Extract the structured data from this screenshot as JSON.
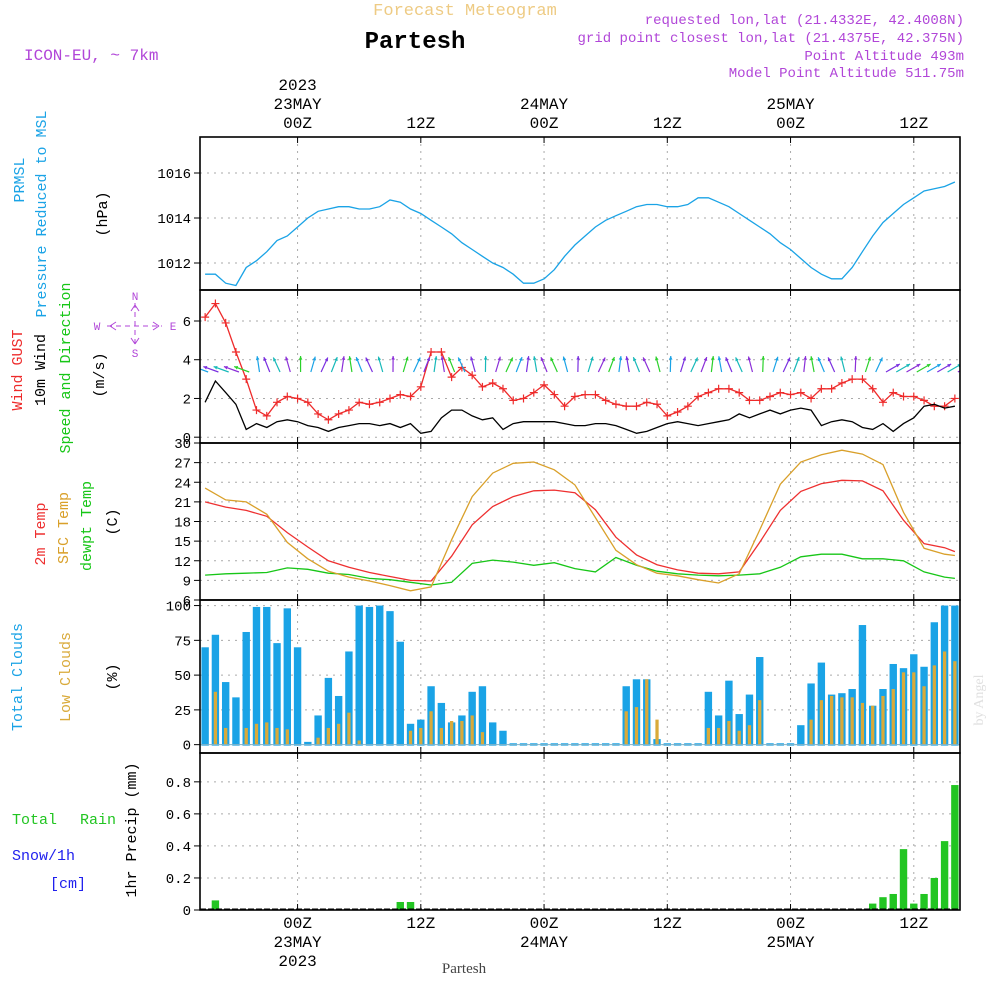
{
  "header": {
    "title_top": "Forecast Meteogram",
    "location": "Partesh",
    "model": "ICON-EU, ~ 7km",
    "requested": "requested lon,lat (21.4332E, 42.4008N)",
    "gridpoint": "grid point closest lon,lat (21.4375E, 42.375N)",
    "altitude": "Point Altitude 493m",
    "model_altitude": "Model Point Altitude 511.75m",
    "footer_name": "Partesh",
    "watermark": "by Angel"
  },
  "colors": {
    "pressure": "#1aa3e6",
    "gust": "#ee2b2b",
    "wind": "#000000",
    "temp2m": "#ee3030",
    "sfc": "#d9a02a",
    "dewpt": "#17c617",
    "total_clouds": "#1aa3e6",
    "low_clouds": "#d9aa3a",
    "rain": "#22c522",
    "snow": "#2020ee",
    "purple": "#b146d8",
    "title_orange": "#eecb84"
  },
  "time_axis": {
    "top_labels": [
      {
        "lines": [
          "2023",
          "23MAY",
          "00Z"
        ],
        "hour": 0
      },
      {
        "lines": [
          "12Z"
        ],
        "hour": 12
      },
      {
        "lines": [
          "24MAY",
          "00Z"
        ],
        "hour": 24
      },
      {
        "lines": [
          "12Z"
        ],
        "hour": 36
      },
      {
        "lines": [
          "25MAY",
          "00Z"
        ],
        "hour": 48
      },
      {
        "lines": [
          "12Z"
        ],
        "hour": 60
      }
    ],
    "bottom_labels": [
      {
        "lines": [
          "00Z",
          "23MAY",
          "2023"
        ],
        "hour": 0
      },
      {
        "lines": [
          "12Z"
        ],
        "hour": 12
      },
      {
        "lines": [
          "00Z",
          "24MAY"
        ],
        "hour": 24
      },
      {
        "lines": [
          "12Z"
        ],
        "hour": 36
      },
      {
        "lines": [
          "00Z",
          "25MAY"
        ],
        "hour": 48
      },
      {
        "lines": [
          "12Z"
        ],
        "hour": 60
      }
    ]
  },
  "panels": {
    "pressure": {
      "label1": "PRMSL",
      "label2": "Pressure Reduced to MSL",
      "unit": "(hPa)"
    },
    "wind": {
      "label_gust": "Wind GUST",
      "label_wind": "10m Wind",
      "label_dir": "Speed and Direction",
      "unit": "(m/s)",
      "compass_n": "N",
      "compass_s": "S",
      "compass_w": "W",
      "compass_e": "E"
    },
    "temp": {
      "label_2m": "2m Temp",
      "label_sfc": "SFC Temp",
      "label_dew": "dewpt Temp",
      "unit": "(C)"
    },
    "clouds": {
      "label_total": "Total Clouds",
      "label_low": "Low Clouds",
      "unit": "(%)"
    },
    "precip": {
      "label_total": "Total",
      "label_rain": "Rain",
      "label_snow": "Snow/1h",
      "label_cm": "[cm]",
      "unit": "1hr Precip (mm)"
    }
  },
  "chart_data": [
    {
      "type": "line",
      "title": "PRMSL Pressure Reduced to MSL",
      "ylabel": "(hPa)",
      "ylim": [
        1010.8,
        1017.6
      ],
      "yticks": [
        1012,
        1014,
        1016
      ],
      "x_start_hour": -9.5,
      "x_end_hour": 64.5,
      "x": [
        -9,
        -8,
        -7,
        -6,
        -5,
        -4,
        -3,
        -2,
        -1,
        0,
        1,
        2,
        3,
        4,
        5,
        6,
        7,
        8,
        9,
        10,
        11,
        12,
        13,
        14,
        15,
        16,
        17,
        18,
        19,
        20,
        21,
        22,
        23,
        24,
        25,
        26,
        27,
        28,
        29,
        30,
        31,
        32,
        33,
        34,
        35,
        36,
        37,
        38,
        39,
        40,
        41,
        42,
        43,
        44,
        45,
        46,
        47,
        48,
        49,
        50,
        51,
        52,
        53,
        54,
        55,
        56,
        57,
        58,
        59,
        60,
        61,
        62,
        63,
        64
      ],
      "series": [
        {
          "name": "PRMSL",
          "values": [
            1011.5,
            1011.5,
            1011.1,
            1011.0,
            1011.8,
            1012.1,
            1012.5,
            1013.0,
            1013.2,
            1013.6,
            1014.0,
            1014.3,
            1014.4,
            1014.5,
            1014.5,
            1014.4,
            1014.4,
            1014.5,
            1014.8,
            1014.7,
            1014.4,
            1014.2,
            1013.9,
            1013.6,
            1013.3,
            1012.9,
            1012.6,
            1012.3,
            1012.0,
            1011.8,
            1011.5,
            1011.1,
            1011.1,
            1011.3,
            1011.7,
            1012.3,
            1012.8,
            1013.2,
            1013.6,
            1013.9,
            1014.1,
            1014.3,
            1014.5,
            1014.6,
            1014.6,
            1014.5,
            1014.5,
            1014.6,
            1014.9,
            1014.9,
            1014.7,
            1014.5,
            1014.2,
            1013.9,
            1013.6,
            1013.3,
            1012.9,
            1012.6,
            1012.2,
            1011.8,
            1011.5,
            1011.3,
            1011.3,
            1011.8,
            1012.5,
            1013.2,
            1013.8,
            1014.2,
            1014.6,
            1014.9,
            1015.2,
            1015.3,
            1015.4,
            1015.6
          ]
        }
      ]
    },
    {
      "type": "line",
      "title": "Wind GUST / 10m Wind Speed and Direction",
      "ylabel": "(m/s)",
      "ylim": [
        -0.3,
        7.6
      ],
      "yticks": [
        0,
        2,
        4,
        6
      ],
      "x": [
        -9,
        -8,
        -7,
        -6,
        -5,
        -4,
        -3,
        -2,
        -1,
        0,
        1,
        2,
        3,
        4,
        5,
        6,
        7,
        8,
        9,
        10,
        11,
        12,
        13,
        14,
        15,
        16,
        17,
        18,
        19,
        20,
        21,
        22,
        23,
        24,
        25,
        26,
        27,
        28,
        29,
        30,
        31,
        32,
        33,
        34,
        35,
        36,
        37,
        38,
        39,
        40,
        41,
        42,
        43,
        44,
        45,
        46,
        47,
        48,
        49,
        50,
        51,
        52,
        53,
        54,
        55,
        56,
        57,
        58,
        59,
        60,
        61,
        62,
        63,
        64
      ],
      "series": [
        {
          "name": "Wind GUST",
          "values": [
            6.2,
            6.9,
            5.9,
            4.4,
            3.0,
            1.4,
            1.1,
            1.8,
            2.1,
            2.0,
            1.8,
            1.2,
            0.9,
            1.2,
            1.4,
            1.8,
            1.7,
            1.8,
            2.0,
            2.2,
            2.1,
            2.6,
            4.4,
            4.4,
            3.1,
            3.6,
            3.2,
            2.6,
            2.8,
            2.5,
            1.9,
            2.0,
            2.3,
            2.7,
            2.2,
            1.6,
            2.1,
            2.2,
            2.2,
            1.9,
            1.7,
            1.6,
            1.6,
            1.8,
            1.7,
            1.1,
            1.3,
            1.6,
            2.1,
            2.3,
            2.5,
            2.5,
            2.3,
            1.9,
            1.9,
            2.1,
            2.3,
            2.2,
            2.3,
            2.0,
            2.5,
            2.5,
            2.8,
            3.0,
            3.0,
            2.5,
            1.8,
            2.3,
            2.1,
            2.1,
            1.9,
            1.6,
            1.6,
            2.0
          ]
        },
        {
          "name": "10m Wind",
          "values": [
            1.8,
            2.9,
            2.3,
            1.7,
            0.4,
            0.7,
            0.5,
            0.8,
            0.9,
            0.8,
            0.6,
            0.5,
            0.3,
            0.5,
            0.6,
            0.7,
            0.7,
            0.6,
            0.7,
            0.5,
            0.7,
            0.2,
            0.3,
            1.0,
            1.4,
            1.4,
            1.1,
            0.9,
            1.0,
            0.4,
            0.7,
            0.8,
            0.8,
            0.8,
            0.8,
            0.7,
            0.6,
            0.6,
            0.7,
            0.7,
            0.6,
            0.4,
            0.2,
            0.3,
            0.5,
            0.7,
            0.8,
            0.7,
            0.6,
            0.7,
            0.8,
            0.9,
            1.2,
            1.0,
            1.2,
            1.4,
            1.2,
            1.4,
            1.5,
            1.4,
            0.6,
            0.8,
            0.9,
            0.8,
            0.5,
            0.4,
            0.7,
            0.3,
            0.7,
            1.0,
            1.6,
            1.7,
            1.5,
            1.6
          ]
        }
      ]
    },
    {
      "type": "line",
      "title": "2m Temp / SFC Temp / dewpt Temp",
      "ylabel": "(C)",
      "ylim": [
        6,
        30
      ],
      "yticks": [
        6,
        9,
        12,
        15,
        18,
        21,
        24,
        27,
        30
      ],
      "x": [
        -9,
        -7,
        -5,
        -3,
        -1,
        1,
        3,
        5,
        7,
        9,
        11,
        13,
        15,
        17,
        19,
        21,
        23,
        25,
        27,
        29,
        31,
        33,
        35,
        37,
        39,
        41,
        43,
        45,
        47,
        49,
        51,
        53,
        55,
        57,
        59,
        61,
        63,
        64
      ],
      "series": [
        {
          "name": "2m Temp",
          "values": [
            21.0,
            20.2,
            19.7,
            18.8,
            16.3,
            14.1,
            12.0,
            11.0,
            10.2,
            9.6,
            9.0,
            8.9,
            12.7,
            17.5,
            20.3,
            21.8,
            22.7,
            22.8,
            22.4,
            19.8,
            15.6,
            12.9,
            11.4,
            10.6,
            10.1,
            10.0,
            10.3,
            14.8,
            19.7,
            22.6,
            23.8,
            24.3,
            24.2,
            22.7,
            18.2,
            14.6,
            14.0,
            13.4
          ]
        },
        {
          "name": "SFC Temp",
          "values": [
            23.1,
            21.3,
            21.0,
            19.1,
            14.8,
            12.3,
            10.4,
            9.5,
            8.9,
            8.2,
            7.4,
            8.0,
            15.2,
            21.8,
            25.4,
            26.9,
            27.1,
            25.9,
            23.6,
            18.6,
            13.6,
            11.4,
            10.1,
            9.7,
            9.1,
            8.6,
            10.0,
            16.7,
            23.7,
            27.1,
            28.2,
            28.9,
            28.3,
            26.7,
            19.4,
            13.9,
            13.0,
            12.8
          ]
        },
        {
          "name": "dewpt Temp",
          "values": [
            9.8,
            10.0,
            10.1,
            10.2,
            10.9,
            10.7,
            10.1,
            9.9,
            9.3,
            9.1,
            8.7,
            8.3,
            8.7,
            11.6,
            12.1,
            11.8,
            11.3,
            11.7,
            10.8,
            10.3,
            12.5,
            11.3,
            10.4,
            10.0,
            9.8,
            9.7,
            9.8,
            10.0,
            11.0,
            12.6,
            13.0,
            13.0,
            12.3,
            12.3,
            12.0,
            10.3,
            9.5,
            9.3
          ]
        }
      ]
    },
    {
      "type": "bar",
      "title": "Total Clouds / Low Clouds",
      "ylabel": "(%)",
      "ylim": [
        -6,
        104
      ],
      "yticks": [
        0,
        25,
        50,
        75,
        100
      ],
      "x": [
        -9,
        -8,
        -7,
        -6,
        -5,
        -4,
        -3,
        -2,
        -1,
        0,
        1,
        2,
        3,
        4,
        5,
        6,
        7,
        8,
        9,
        10,
        11,
        12,
        13,
        14,
        15,
        16,
        17,
        18,
        19,
        20,
        21,
        22,
        23,
        24,
        25,
        26,
        27,
        28,
        29,
        30,
        31,
        32,
        33,
        34,
        35,
        36,
        37,
        38,
        39,
        40,
        41,
        42,
        43,
        44,
        45,
        46,
        47,
        48,
        49,
        50,
        51,
        52,
        53,
        54,
        55,
        56,
        57,
        58,
        59,
        60,
        61,
        62,
        63,
        64
      ],
      "series": [
        {
          "name": "Total Clouds",
          "values": [
            70,
            79,
            45,
            34,
            81,
            99,
            99,
            73,
            98,
            70,
            2,
            21,
            48,
            35,
            67,
            100,
            99,
            100,
            96,
            74,
            15,
            18,
            42,
            30,
            16,
            21,
            38,
            42,
            16,
            10,
            1,
            1,
            1,
            1,
            1,
            1,
            1,
            1,
            1,
            1,
            1,
            42,
            47,
            47,
            4,
            1,
            1,
            1,
            1,
            38,
            21,
            46,
            22,
            36,
            63,
            1,
            1,
            1,
            14,
            44,
            59,
            36,
            37,
            40,
            86,
            28,
            40,
            58,
            55,
            65,
            56,
            88,
            100,
            100
          ]
        },
        {
          "name": "Low Clouds",
          "values": [
            0,
            38,
            12,
            0,
            12,
            15,
            16,
            12,
            11,
            0,
            0,
            5,
            12,
            15,
            23,
            3,
            0,
            0,
            0,
            0,
            10,
            12,
            24,
            12,
            17,
            17,
            21,
            9,
            0,
            0,
            0,
            0,
            0,
            0,
            0,
            0,
            0,
            0,
            0,
            0,
            0,
            24,
            27,
            47,
            18,
            0,
            0,
            0,
            0,
            12,
            12,
            17,
            10,
            14,
            32,
            0,
            0,
            0,
            0,
            18,
            32,
            35,
            34,
            34,
            30,
            28,
            35,
            40,
            52,
            52,
            42,
            57,
            67,
            60
          ]
        }
      ]
    },
    {
      "type": "bar",
      "title": "1hr Precip Total Rain / Snow",
      "ylabel": "1hr Precip (mm)",
      "ylim": [
        0,
        0.98
      ],
      "yticks": [
        0,
        0.2,
        0.4,
        0.6,
        0.8
      ],
      "x": [
        -8,
        10,
        11,
        56,
        57,
        58,
        59,
        60,
        61,
        62,
        63,
        64
      ],
      "series": [
        {
          "name": "Total Rain",
          "values": [
            0.06,
            0.05,
            0.05,
            0.04,
            0.08,
            0.1,
            0.38,
            0.04,
            0.1,
            0.2,
            0.43,
            0.78
          ]
        },
        {
          "name": "Snow/1h",
          "values": [
            0,
            0,
            0,
            0,
            0,
            0,
            0,
            0,
            0,
            0,
            0,
            0
          ]
        }
      ]
    }
  ]
}
